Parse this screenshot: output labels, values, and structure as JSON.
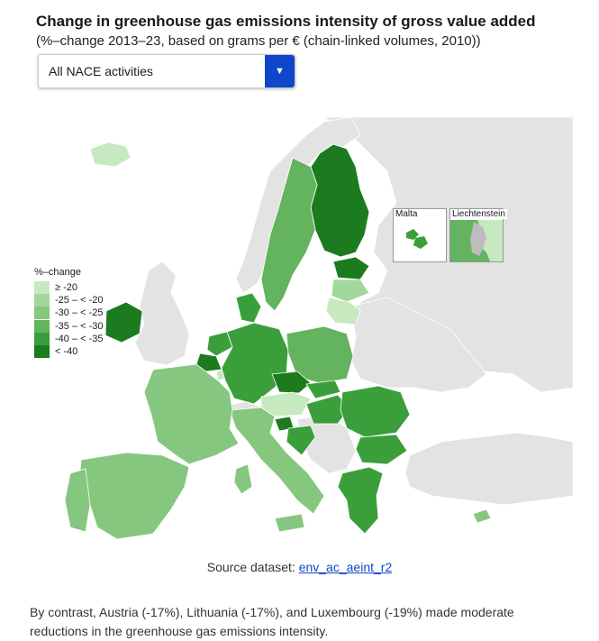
{
  "title": "Change in greenhouse gas emissions intensity of gross value added",
  "subtitle": "(%–change 2013–23, based on grams per € (chain-linked volumes, 2010))",
  "dropdown": {
    "selected": "All NACE activities",
    "icon": "chevron-down-icon"
  },
  "legend": {
    "title": "%–change",
    "items": [
      {
        "label": "≥ -20",
        "color": "#c7e9c0"
      },
      {
        "label": "-25 – < -20",
        "color": "#a1d99b"
      },
      {
        "label": "-30 – < -25",
        "color": "#86c77f"
      },
      {
        "label": "-35 – < -30",
        "color": "#63b35f"
      },
      {
        "label": "-40 – < -35",
        "color": "#3a9f3a"
      },
      {
        "label": "< -40",
        "color": "#1c7a1f"
      }
    ]
  },
  "insets": {
    "malta": "Malta",
    "liechtenstein": "Liechtenstein"
  },
  "source": {
    "label": "Source dataset:",
    "link": "env_ac_aeint_r2"
  },
  "paragraph": "By contrast, Austria (-17%), Lithuania (-17%), and Luxembourg (-19%) made moderate reductions in the greenhouse gas emissions intensity.",
  "colors": {
    "accent": "#0e47cb",
    "no_data": "#e3e3e3",
    "sea": "#ffffff",
    "non_eu": "#e3e3e3"
  }
}
